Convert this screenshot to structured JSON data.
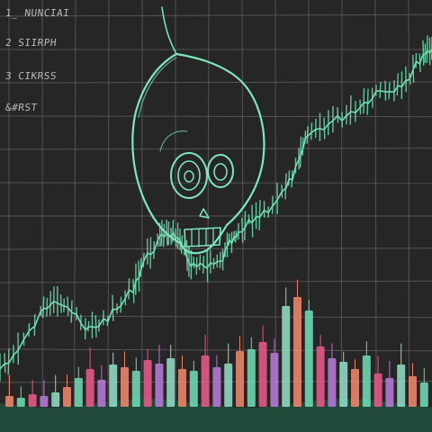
{
  "notes": [
    "1_ NUNCIAI",
    "2 SIIRPH",
    "3 CIKRSS",
    "&#RST"
  ],
  "colors": {
    "background": "#262626",
    "grid": "#5c5c5c",
    "price_line": "#72e0b3",
    "skull": "#7fe6bd",
    "volume_ground": "#1f4a39",
    "bar_palette": [
      "#e8856b",
      "#6fd6b0",
      "#e05a86",
      "#b07ad0",
      "#8ed9c3"
    ]
  },
  "icons": {
    "center": "skull-icon"
  }
}
